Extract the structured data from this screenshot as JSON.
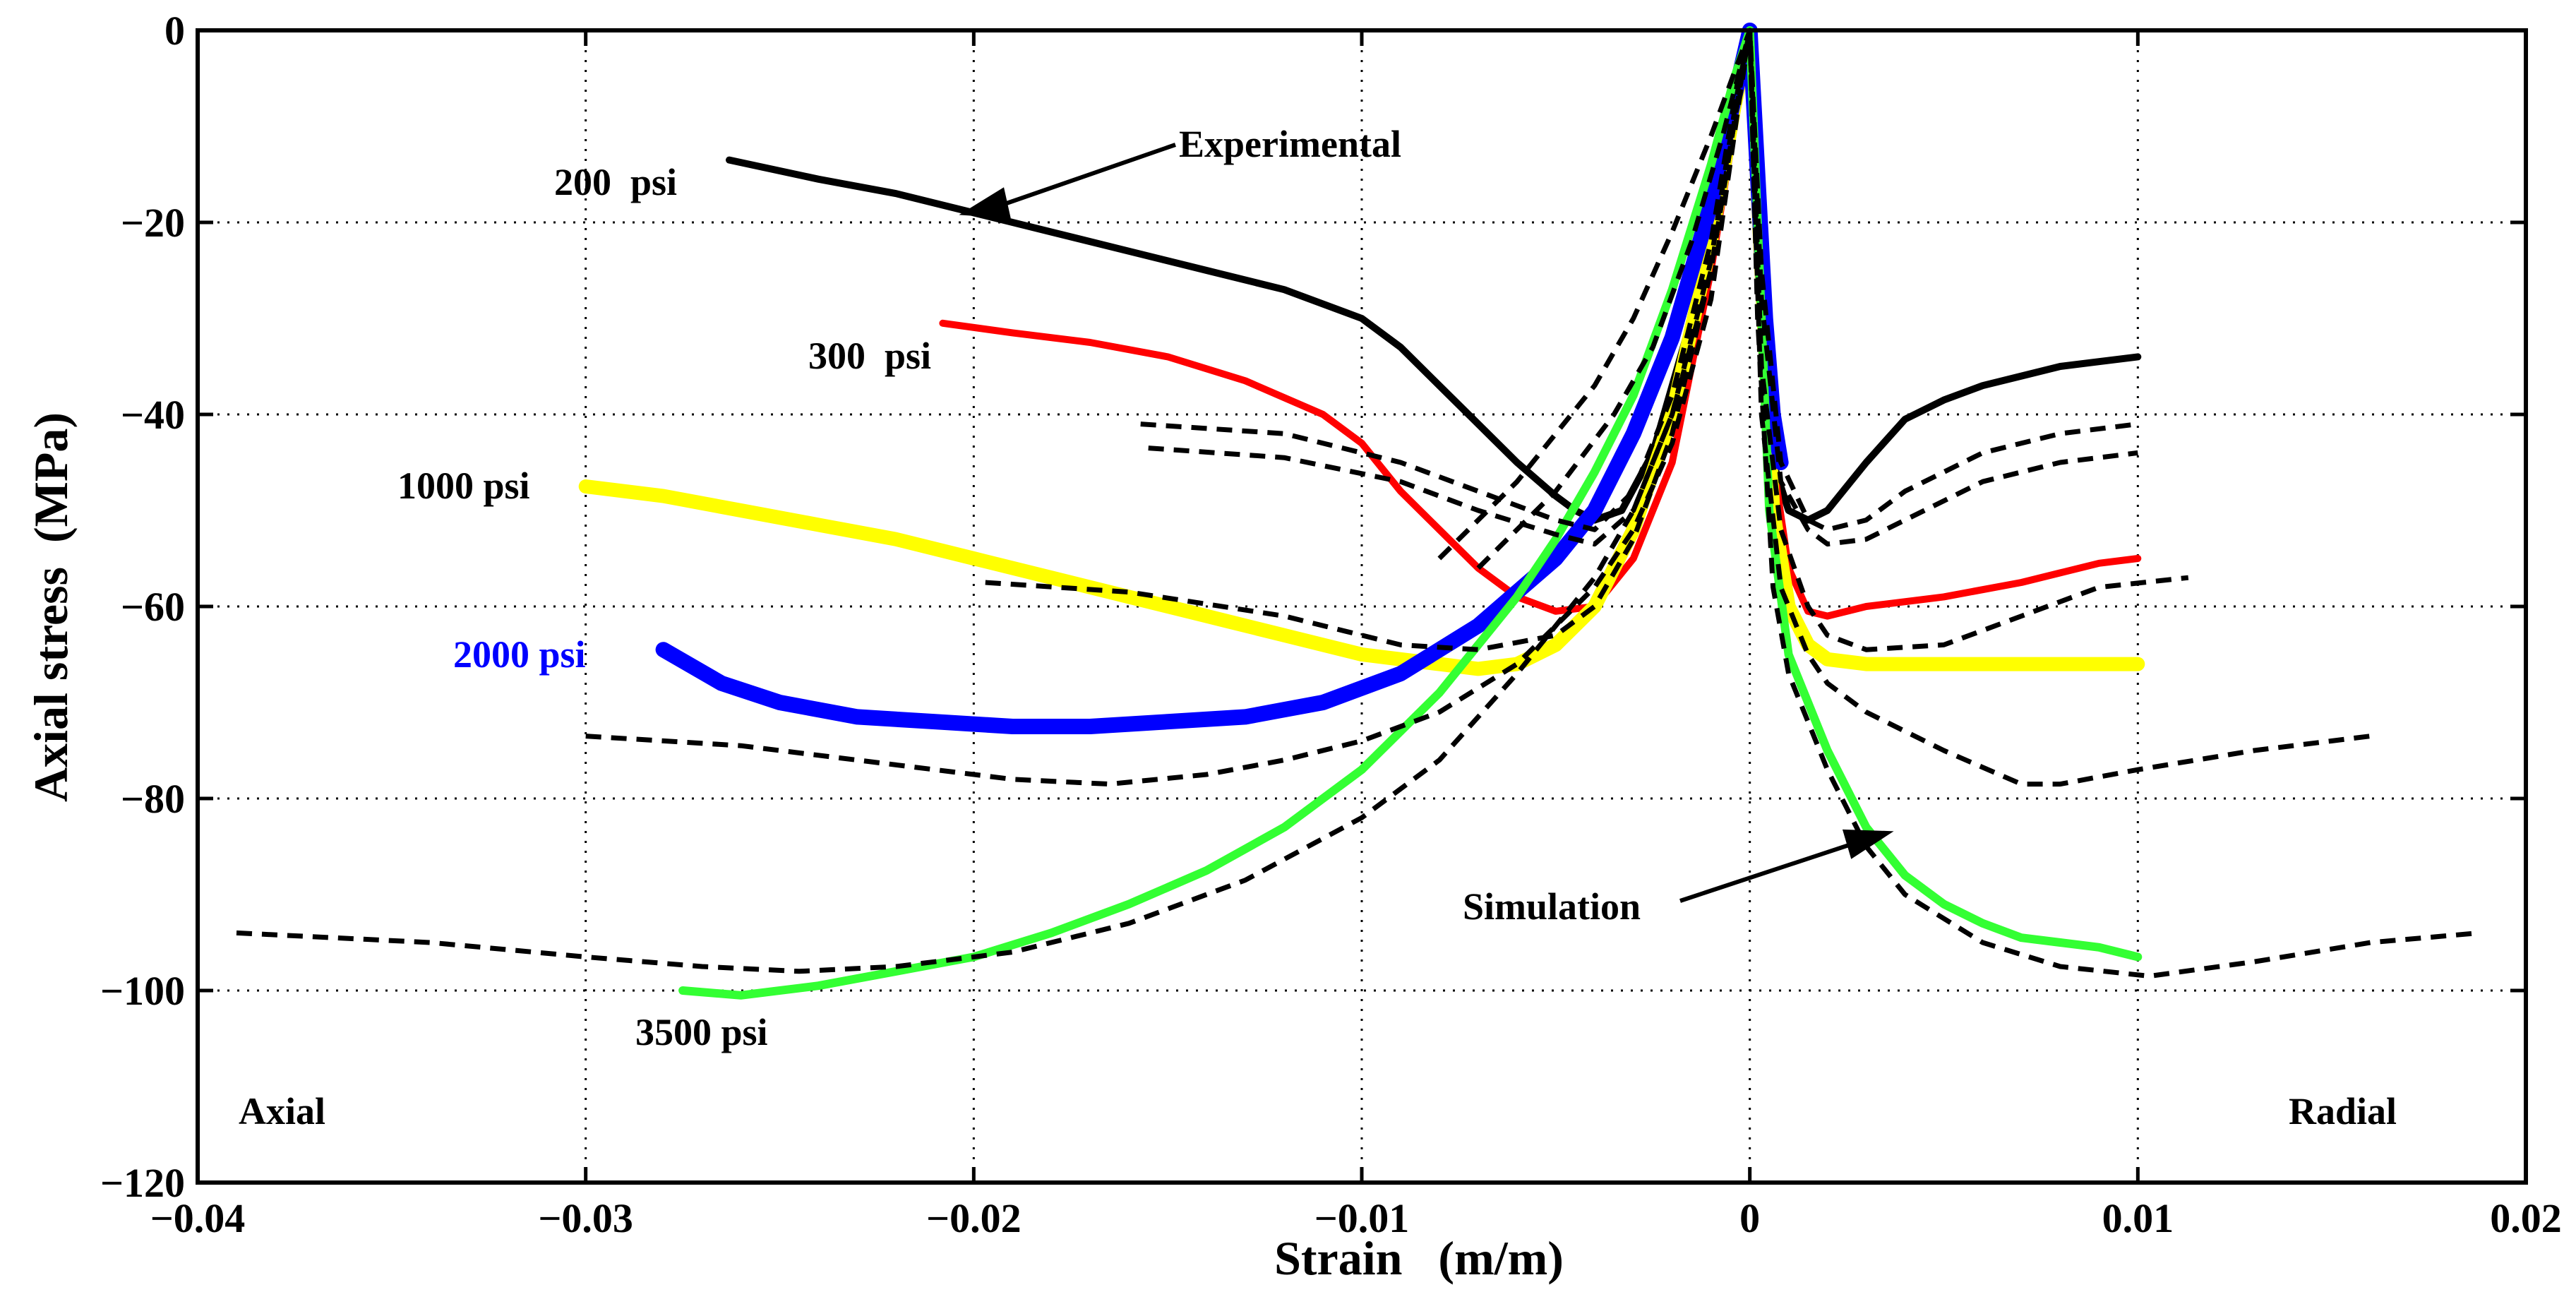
{
  "chart_data": {
    "type": "line",
    "title": "",
    "xlabel": "Strain   (m/m)",
    "ylabel": "Axial stress  (MPa)",
    "xlim": [
      -0.04,
      0.02
    ],
    "ylim": [
      -120,
      0
    ],
    "grid": true,
    "xticks": [
      -0.04,
      -0.03,
      -0.02,
      -0.01,
      0,
      0.01,
      0.02
    ],
    "xtick_labels": [
      "−0.04",
      "−0.03",
      "−0.02",
      "−0.01",
      "0",
      "0.01",
      "0.02"
    ],
    "yticks": [
      0,
      -20,
      -40,
      -60,
      -80,
      -100,
      -120
    ],
    "ytick_labels": [
      "0",
      "−20",
      "−40",
      "−60",
      "−80",
      "−100",
      "−120"
    ],
    "text_labels": {
      "p200": "200  psi",
      "p300": "300  psi",
      "p1000": "1000 psi",
      "p2000": "2000 psi",
      "p3500": "3500 psi",
      "experimental": "Experimental",
      "simulation": "Simulation",
      "axial": "Axial",
      "radial": "Radial"
    },
    "series": [
      {
        "name": "200 psi experimental",
        "color": "#000000",
        "style": "solid",
        "points": [
          [
            -0.0263,
            -13.5
          ],
          [
            -0.024,
            -15.5
          ],
          [
            -0.022,
            -17
          ],
          [
            -0.02,
            -19
          ],
          [
            -0.018,
            -21
          ],
          [
            -0.016,
            -23
          ],
          [
            -0.014,
            -25
          ],
          [
            -0.012,
            -27
          ],
          [
            -0.01,
            -30
          ],
          [
            -0.009,
            -33
          ],
          [
            -0.008,
            -37
          ],
          [
            -0.007,
            -41
          ],
          [
            -0.006,
            -45
          ],
          [
            -0.005,
            -48.5
          ],
          [
            -0.0045,
            -50
          ],
          [
            -0.004,
            -51
          ],
          [
            -0.0033,
            -50
          ],
          [
            -0.0025,
            -44
          ],
          [
            -0.0015,
            -30
          ],
          [
            -0.0008,
            -15
          ],
          [
            -0.0003,
            -5
          ],
          [
            0,
            0
          ],
          [
            0.0002,
            -10
          ],
          [
            0.0004,
            -30
          ],
          [
            0.0006,
            -45
          ],
          [
            0.001,
            -50
          ],
          [
            0.0015,
            -51
          ],
          [
            0.002,
            -50
          ],
          [
            0.003,
            -45
          ],
          [
            0.004,
            -40.5
          ],
          [
            0.005,
            -38.5
          ],
          [
            0.006,
            -37
          ],
          [
            0.007,
            -36
          ],
          [
            0.008,
            -35
          ],
          [
            0.009,
            -34.5
          ],
          [
            0.01,
            -34
          ]
        ]
      },
      {
        "name": "300 psi experimental",
        "color": "#ff0000",
        "style": "solid",
        "points": [
          [
            -0.0208,
            -30.5
          ],
          [
            -0.019,
            -31.5
          ],
          [
            -0.017,
            -32.5
          ],
          [
            -0.015,
            -34
          ],
          [
            -0.013,
            -36.5
          ],
          [
            -0.011,
            -40
          ],
          [
            -0.01,
            -43
          ],
          [
            -0.009,
            -48
          ],
          [
            -0.008,
            -52
          ],
          [
            -0.007,
            -56
          ],
          [
            -0.006,
            -59
          ],
          [
            -0.005,
            -60.5
          ],
          [
            -0.004,
            -60
          ],
          [
            -0.003,
            -55
          ],
          [
            -0.002,
            -45
          ],
          [
            -0.001,
            -25
          ],
          [
            -0.0004,
            -10
          ],
          [
            0,
            0
          ],
          [
            0.0003,
            -20
          ],
          [
            0.0006,
            -45
          ],
          [
            0.001,
            -56
          ],
          [
            0.0015,
            -60.5
          ],
          [
            0.002,
            -61
          ],
          [
            0.003,
            -60
          ],
          [
            0.005,
            -59
          ],
          [
            0.007,
            -57.5
          ],
          [
            0.008,
            -56.5
          ],
          [
            0.009,
            -55.5
          ],
          [
            0.01,
            -55
          ]
        ]
      },
      {
        "name": "1000 psi experimental",
        "color": "#ffff00",
        "style": "solid",
        "points": [
          [
            -0.03,
            -47.5
          ],
          [
            -0.028,
            -48.5
          ],
          [
            -0.026,
            -50
          ],
          [
            -0.024,
            -51.5
          ],
          [
            -0.022,
            -53
          ],
          [
            -0.02,
            -55
          ],
          [
            -0.018,
            -57
          ],
          [
            -0.016,
            -59
          ],
          [
            -0.014,
            -61
          ],
          [
            -0.012,
            -63
          ],
          [
            -0.01,
            -65
          ],
          [
            -0.008,
            -66
          ],
          [
            -0.007,
            -66.5
          ],
          [
            -0.006,
            -66
          ],
          [
            -0.005,
            -64
          ],
          [
            -0.004,
            -60
          ],
          [
            -0.003,
            -52
          ],
          [
            -0.002,
            -40
          ],
          [
            -0.001,
            -22
          ],
          [
            -0.0004,
            -8
          ],
          [
            0,
            0
          ],
          [
            0.0003,
            -25
          ],
          [
            0.0006,
            -50
          ],
          [
            0.001,
            -60
          ],
          [
            0.0015,
            -64
          ],
          [
            0.002,
            -65.5
          ],
          [
            0.003,
            -66
          ],
          [
            0.005,
            -66
          ],
          [
            0.007,
            -66
          ],
          [
            0.009,
            -66
          ],
          [
            0.01,
            -66
          ]
        ]
      },
      {
        "name": "2000 psi experimental",
        "color": "#0000ff",
        "style": "solid",
        "points": [
          [
            -0.028,
            -64.5
          ],
          [
            -0.0265,
            -68
          ],
          [
            -0.025,
            -70
          ],
          [
            -0.023,
            -71.5
          ],
          [
            -0.021,
            -72
          ],
          [
            -0.019,
            -72.5
          ],
          [
            -0.017,
            -72.5
          ],
          [
            -0.015,
            -72
          ],
          [
            -0.013,
            -71.5
          ],
          [
            -0.011,
            -70
          ],
          [
            -0.009,
            -67
          ],
          [
            -0.007,
            -62
          ],
          [
            -0.005,
            -55
          ],
          [
            -0.004,
            -50
          ],
          [
            -0.003,
            -42
          ],
          [
            -0.002,
            -32
          ],
          [
            -0.001,
            -18
          ],
          [
            -0.0004,
            -7
          ],
          [
            0,
            0
          ],
          [
            0.0002,
            -15
          ],
          [
            0.0004,
            -30
          ],
          [
            0.0006,
            -40
          ],
          [
            0.0008,
            -45
          ]
        ]
      },
      {
        "name": "3500 psi experimental",
        "color": "#33ff33",
        "style": "solid",
        "points": [
          [
            -0.0275,
            -100
          ],
          [
            -0.026,
            -100.5
          ],
          [
            -0.024,
            -99.5
          ],
          [
            -0.022,
            -98
          ],
          [
            -0.02,
            -96.5
          ],
          [
            -0.018,
            -94
          ],
          [
            -0.016,
            -91
          ],
          [
            -0.014,
            -87.5
          ],
          [
            -0.012,
            -83
          ],
          [
            -0.01,
            -77
          ],
          [
            -0.008,
            -69
          ],
          [
            -0.006,
            -59
          ],
          [
            -0.005,
            -53
          ],
          [
            -0.004,
            -46
          ],
          [
            -0.003,
            -38
          ],
          [
            -0.002,
            -27
          ],
          [
            -0.001,
            -14
          ],
          [
            -0.0004,
            -5
          ],
          [
            0,
            0
          ],
          [
            0.0002,
            -20
          ],
          [
            0.0005,
            -50
          ],
          [
            0.001,
            -65
          ],
          [
            0.002,
            -75
          ],
          [
            0.003,
            -83
          ],
          [
            0.004,
            -88
          ],
          [
            0.005,
            -91
          ],
          [
            0.006,
            -93
          ],
          [
            0.007,
            -94.5
          ],
          [
            0.008,
            -95
          ],
          [
            0.009,
            -95.5
          ],
          [
            0.01,
            -96.5
          ]
        ]
      },
      {
        "name": "200 psi simulation a",
        "color": "#000000",
        "style": "dashed",
        "points": [
          [
            -0.0157,
            -41
          ],
          [
            -0.012,
            -42
          ],
          [
            -0.009,
            -45
          ],
          [
            -0.007,
            -48
          ],
          [
            -0.005,
            -51
          ],
          [
            -0.004,
            -52
          ],
          [
            -0.003,
            -48
          ],
          [
            -0.002,
            -38
          ],
          [
            -0.001,
            -22
          ],
          [
            -0.0003,
            -5
          ],
          [
            0,
            0
          ],
          [
            0.0003,
            -25
          ],
          [
            0.0008,
            -45
          ],
          [
            0.0015,
            -51
          ],
          [
            0.002,
            -52
          ],
          [
            0.003,
            -51
          ],
          [
            0.004,
            -48
          ],
          [
            0.006,
            -44
          ],
          [
            0.008,
            -42
          ],
          [
            0.01,
            -41
          ]
        ]
      },
      {
        "name": "200 psi simulation b",
        "color": "#000000",
        "style": "dashed",
        "points": [
          [
            -0.0155,
            -43.5
          ],
          [
            -0.012,
            -44.5
          ],
          [
            -0.009,
            -47
          ],
          [
            -0.007,
            -50
          ],
          [
            -0.005,
            -52.5
          ],
          [
            -0.004,
            -53.5
          ],
          [
            -0.003,
            -50
          ],
          [
            -0.002,
            -40
          ],
          [
            -0.001,
            -24
          ],
          [
            -0.0003,
            -6
          ],
          [
            0,
            0
          ],
          [
            0.0003,
            -28
          ],
          [
            0.0008,
            -47
          ],
          [
            0.0015,
            -52
          ],
          [
            0.002,
            -53.5
          ],
          [
            0.003,
            -53
          ],
          [
            0.004,
            -51
          ],
          [
            0.006,
            -47
          ],
          [
            0.008,
            -45
          ],
          [
            0.01,
            -44
          ]
        ]
      },
      {
        "name": "1000 psi simulation",
        "color": "#000000",
        "style": "dashed",
        "points": [
          [
            -0.0197,
            -57.5
          ],
          [
            -0.016,
            -58.5
          ],
          [
            -0.012,
            -61
          ],
          [
            -0.009,
            -64
          ],
          [
            -0.007,
            -64.5
          ],
          [
            -0.005,
            -63
          ],
          [
            -0.004,
            -60
          ],
          [
            -0.003,
            -53
          ],
          [
            -0.002,
            -42
          ],
          [
            -0.001,
            -25
          ],
          [
            -0.0003,
            -7
          ],
          [
            0,
            0
          ],
          [
            0.0003,
            -35
          ],
          [
            0.0008,
            -52
          ],
          [
            0.0015,
            -60
          ],
          [
            0.002,
            -63
          ],
          [
            0.003,
            -64.5
          ],
          [
            0.005,
            -64
          ],
          [
            0.007,
            -61
          ],
          [
            0.009,
            -58
          ],
          [
            0.0113,
            -57
          ]
        ]
      },
      {
        "name": "2000 psi simulation",
        "color": "#000000",
        "style": "dashed",
        "points": [
          [
            -0.03,
            -73.5
          ],
          [
            -0.026,
            -74.5
          ],
          [
            -0.022,
            -76.5
          ],
          [
            -0.019,
            -78
          ],
          [
            -0.0165,
            -78.5
          ],
          [
            -0.014,
            -77.5
          ],
          [
            -0.012,
            -76
          ],
          [
            -0.01,
            -74
          ],
          [
            -0.008,
            -71
          ],
          [
            -0.006,
            -66
          ],
          [
            -0.004,
            -58
          ],
          [
            -0.003,
            -52
          ],
          [
            -0.002,
            -43
          ],
          [
            -0.001,
            -28
          ],
          [
            -0.0003,
            -8
          ],
          [
            0,
            0
          ],
          [
            0.0003,
            -40
          ],
          [
            0.0008,
            -58
          ],
          [
            0.0015,
            -65
          ],
          [
            0.002,
            -68
          ],
          [
            0.003,
            -71
          ],
          [
            0.005,
            -75
          ],
          [
            0.007,
            -78.5
          ],
          [
            0.008,
            -78.5
          ],
          [
            0.01,
            -77
          ],
          [
            0.013,
            -75
          ],
          [
            0.016,
            -73.5
          ]
        ]
      },
      {
        "name": "3500 psi simulation",
        "color": "#000000",
        "style": "dashed",
        "points": [
          [
            -0.039,
            -94
          ],
          [
            -0.034,
            -95
          ],
          [
            -0.03,
            -96.5
          ],
          [
            -0.027,
            -97.5
          ],
          [
            -0.0245,
            -98
          ],
          [
            -0.022,
            -97.5
          ],
          [
            -0.019,
            -96
          ],
          [
            -0.016,
            -93
          ],
          [
            -0.013,
            -88.5
          ],
          [
            -0.01,
            -82
          ],
          [
            -0.008,
            -76
          ],
          [
            -0.006,
            -67
          ],
          [
            -0.004,
            -57
          ],
          [
            -0.003,
            -50
          ],
          [
            -0.002,
            -40
          ],
          [
            -0.001,
            -25
          ],
          [
            -0.0003,
            -7
          ],
          [
            0,
            0
          ],
          [
            0.0002,
            -30
          ],
          [
            0.0006,
            -58
          ],
          [
            0.001,
            -67
          ],
          [
            0.002,
            -77
          ],
          [
            0.003,
            -85
          ],
          [
            0.004,
            -90
          ],
          [
            0.006,
            -95
          ],
          [
            0.008,
            -97.5
          ],
          [
            0.0103,
            -98.5
          ],
          [
            0.013,
            -97
          ],
          [
            0.016,
            -95
          ],
          [
            0.0188,
            -94
          ]
        ]
      },
      {
        "name": "simulation band 1",
        "color": "#000000",
        "style": "dashed",
        "points": [
          [
            -0.008,
            -55
          ],
          [
            -0.006,
            -47
          ],
          [
            -0.004,
            -37
          ],
          [
            -0.003,
            -30
          ],
          [
            -0.002,
            -21
          ],
          [
            -0.001,
            -11
          ],
          [
            0,
            0
          ]
        ]
      },
      {
        "name": "simulation band 2",
        "color": "#000000",
        "style": "dashed",
        "points": [
          [
            -0.007,
            -56
          ],
          [
            -0.005,
            -48
          ],
          [
            -0.0035,
            -40
          ],
          [
            -0.0025,
            -33
          ],
          [
            -0.0015,
            -22
          ],
          [
            -0.0007,
            -11
          ],
          [
            0,
            0
          ]
        ]
      }
    ]
  }
}
